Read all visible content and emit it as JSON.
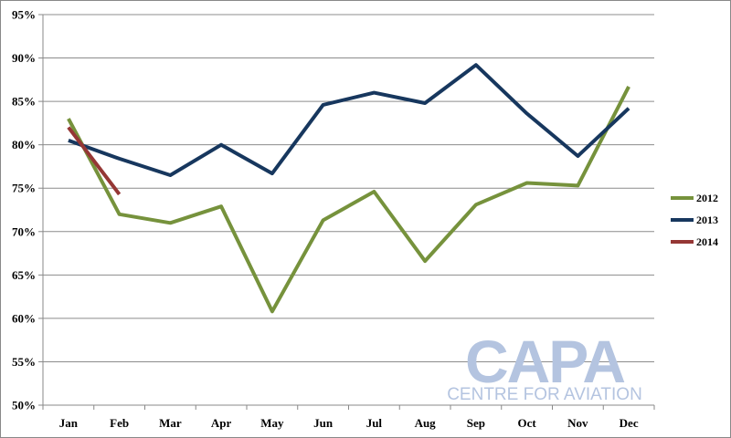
{
  "chart_data": {
    "type": "line",
    "categories": [
      "Jan",
      "Feb",
      "Mar",
      "Apr",
      "May",
      "Jun",
      "Jul",
      "Aug",
      "Sep",
      "Oct",
      "Nov",
      "Dec"
    ],
    "y_tick_labels": [
      "50%",
      "55%",
      "60%",
      "65%",
      "70%",
      "75%",
      "80%",
      "85%",
      "90%",
      "95%"
    ],
    "ylim": [
      50,
      95
    ],
    "y_unit": "%",
    "grid": "horizontal",
    "legend_position": "right",
    "series": [
      {
        "name": "2012",
        "color": "#76923c",
        "values": [
          83.0,
          72.0,
          71.0,
          72.9,
          60.8,
          71.3,
          74.6,
          66.6,
          73.1,
          75.6,
          75.3,
          86.7
        ]
      },
      {
        "name": "2013",
        "color": "#17375e",
        "values": [
          80.5,
          78.4,
          76.5,
          80.0,
          76.7,
          84.6,
          86.0,
          84.8,
          89.2,
          83.6,
          78.7,
          84.2
        ]
      },
      {
        "name": "2014",
        "color": "#953735",
        "values": [
          82.0,
          74.3,
          null,
          null,
          null,
          null,
          null,
          null,
          null,
          null,
          null,
          null
        ]
      }
    ]
  },
  "watermark": {
    "logo_text": "CAPA",
    "tagline": "CENTRE FOR AVIATION",
    "color": "#b4c4e0"
  }
}
